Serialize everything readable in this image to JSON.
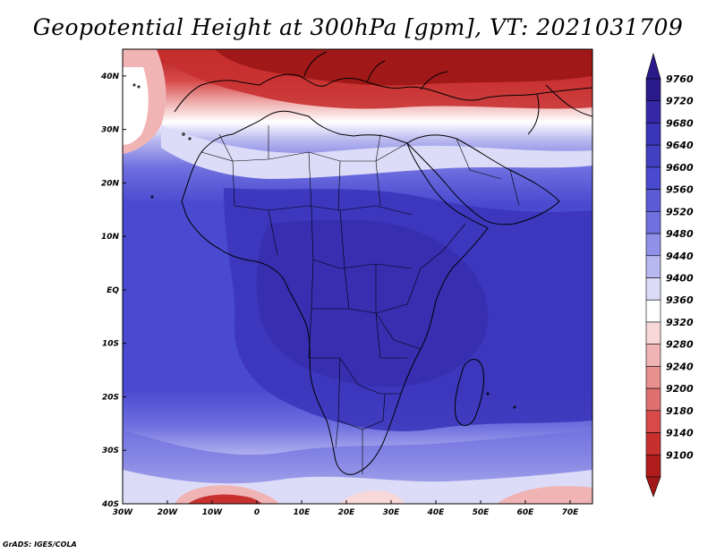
{
  "title": "Geopotential Height at 300hPa [gpm], VT: 2021031709",
  "credit": "GrADS: IGES/COLA",
  "map": {
    "lon_range": [
      -30,
      75
    ],
    "lat_range": [
      -40,
      45
    ],
    "lon_ticks": [
      {
        "value": -30,
        "label": "30W"
      },
      {
        "value": -20,
        "label": "20W"
      },
      {
        "value": -10,
        "label": "10W"
      },
      {
        "value": 0,
        "label": "0"
      },
      {
        "value": 10,
        "label": "10E"
      },
      {
        "value": 20,
        "label": "20E"
      },
      {
        "value": 30,
        "label": "30E"
      },
      {
        "value": 40,
        "label": "40E"
      },
      {
        "value": 50,
        "label": "50E"
      },
      {
        "value": 60,
        "label": "60E"
      },
      {
        "value": 70,
        "label": "70E"
      }
    ],
    "lat_ticks": [
      {
        "value": 40,
        "label": "40N"
      },
      {
        "value": 30,
        "label": "30N"
      },
      {
        "value": 20,
        "label": "20N"
      },
      {
        "value": 10,
        "label": "10N"
      },
      {
        "value": 0,
        "label": "EQ"
      },
      {
        "value": -10,
        "label": "10S"
      },
      {
        "value": -20,
        "label": "20S"
      },
      {
        "value": -30,
        "label": "30S"
      },
      {
        "value": -40,
        "label": "40S"
      }
    ]
  },
  "colorbar": {
    "levels": [
      {
        "label": "9760",
        "color": "#2a1a8c"
      },
      {
        "label": "9720",
        "color": "#3528a8"
      },
      {
        "label": "9680",
        "color": "#3a34b8"
      },
      {
        "label": "9640",
        "color": "#4040c0"
      },
      {
        "label": "9600",
        "color": "#4a4ad0"
      },
      {
        "label": "9560",
        "color": "#5b5bd8"
      },
      {
        "label": "9520",
        "color": "#7070e0"
      },
      {
        "label": "9480",
        "color": "#9090e8"
      },
      {
        "label": "9440",
        "color": "#b8b8f0"
      },
      {
        "label": "9400",
        "color": "#dcdcf8"
      },
      {
        "label": "9360",
        "color": "#ffffff"
      },
      {
        "label": "9320",
        "color": "#f8d8d8"
      },
      {
        "label": "9280",
        "color": "#f0b4b4"
      },
      {
        "label": "9240",
        "color": "#e89090"
      },
      {
        "label": "9200",
        "color": "#e07070"
      },
      {
        "label": "9180",
        "color": "#d84a4a"
      },
      {
        "label": "9140",
        "color": "#c83030"
      },
      {
        "label": "9100",
        "color": "#b01c1c"
      }
    ],
    "bottom_color": "#a01818"
  }
}
